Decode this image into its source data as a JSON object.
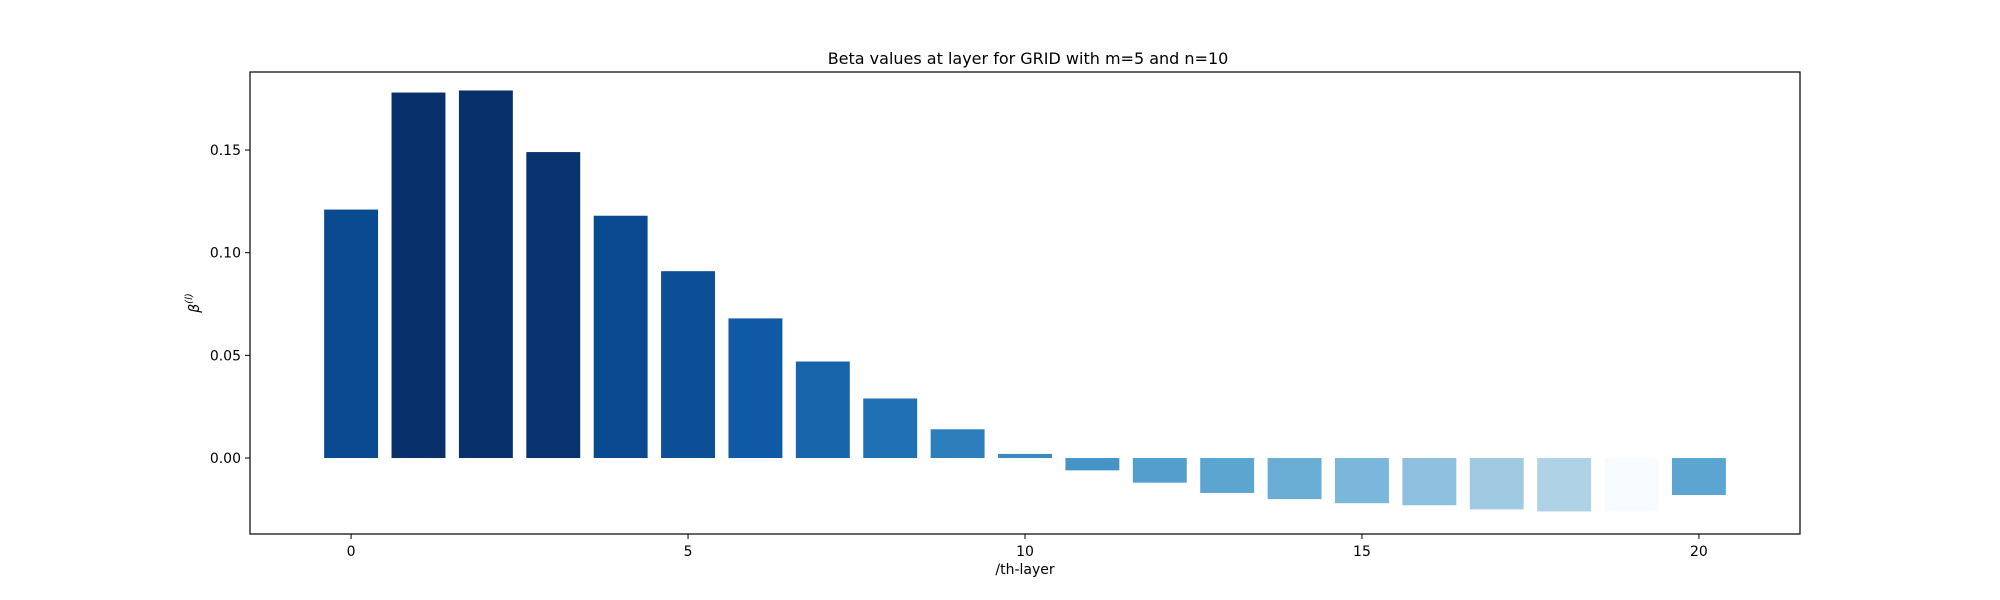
{
  "chart_data": {
    "type": "bar",
    "title": "Beta values at layer for GRID with m=5 and n=10",
    "xlabel": "/th-layer",
    "ylabel": "β",
    "ylabel_superscript": "(l)",
    "x": [
      0,
      1,
      2,
      3,
      4,
      5,
      6,
      7,
      8,
      9,
      10,
      11,
      12,
      13,
      14,
      15,
      16,
      17,
      18,
      19,
      20
    ],
    "values": [
      0.121,
      0.178,
      0.179,
      0.149,
      0.118,
      0.091,
      0.068,
      0.047,
      0.029,
      0.014,
      0.002,
      -0.006,
      -0.012,
      -0.017,
      -0.02,
      -0.022,
      -0.023,
      -0.025,
      -0.026,
      -0.026,
      -0.018
    ],
    "colors": [
      "#0a4a90",
      "#08306b",
      "#08306b",
      "#08336e",
      "#0a4a90",
      "#0c4f96",
      "#1059a6",
      "#1764ab",
      "#2070b4",
      "#2f7ebc",
      "#3c88c1",
      "#4594c7",
      "#539ecd",
      "#5da5d1",
      "#6aaed6",
      "#7bb7db",
      "#8cc0de",
      "#9fcae1",
      "#b0d2e7",
      "#f7fbff",
      "#5da5d1"
    ],
    "xlim": [
      -1.5,
      21.5
    ],
    "ylim": [
      -0.037,
      0.188
    ],
    "xticks": [
      0,
      5,
      10,
      15,
      20
    ],
    "yticks": [
      0.0,
      0.05,
      0.1,
      0.15
    ],
    "ytick_labels": [
      "0.00",
      "0.05",
      "0.10",
      "0.15"
    ],
    "grid": false,
    "bar_width": 0.8
  }
}
